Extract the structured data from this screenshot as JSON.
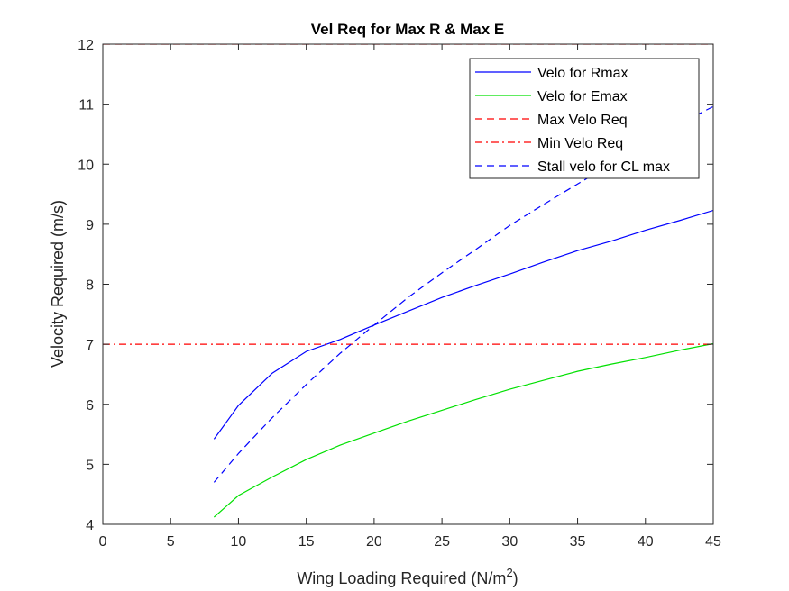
{
  "chart_data": {
    "type": "line",
    "title": "Vel Req for Max R & Max E",
    "xlabel": "Wing Loading Required (N/m",
    "xlabel_sup": "2",
    "xlabel_close": ")",
    "ylabel": "Velocity Required (m/s)",
    "xlim": [
      0,
      45
    ],
    "ylim": [
      4,
      12
    ],
    "xticks": [
      0,
      5,
      10,
      15,
      20,
      25,
      30,
      35,
      40,
      45
    ],
    "yticks": [
      4,
      5,
      6,
      7,
      8,
      9,
      10,
      11,
      12
    ],
    "grid": false,
    "legend_position": "top-right",
    "series": [
      {
        "name": "Velo for Rmax",
        "color": "#0000ff",
        "style": "solid",
        "x": [
          8.2,
          10,
          12.5,
          15,
          17.5,
          20,
          22.5,
          25,
          27.5,
          30,
          32.5,
          35,
          37.5,
          40,
          42.5,
          45
        ],
        "y": [
          5.42,
          5.98,
          6.52,
          6.88,
          7.08,
          7.32,
          7.55,
          7.78,
          7.98,
          8.17,
          8.37,
          8.56,
          8.72,
          8.9,
          9.06,
          9.23
        ]
      },
      {
        "name": "Velo for Emax",
        "color": "#00e000",
        "style": "solid",
        "x": [
          8.2,
          10,
          12.5,
          15,
          17.5,
          20,
          22.5,
          25,
          27.5,
          30,
          32.5,
          35,
          37.5,
          40,
          42.5,
          45
        ],
        "y": [
          4.12,
          4.48,
          4.79,
          5.08,
          5.32,
          5.52,
          5.72,
          5.9,
          6.08,
          6.25,
          6.4,
          6.55,
          6.67,
          6.78,
          6.9,
          7.01
        ]
      },
      {
        "name": "Max Velo Req",
        "color": "#ff0000",
        "style": "dashed",
        "x": [
          0,
          45
        ],
        "y": [
          12,
          12
        ]
      },
      {
        "name": "Min Velo Req",
        "color": "#ff0000",
        "style": "dashdot",
        "x": [
          0,
          45
        ],
        "y": [
          7,
          7
        ]
      },
      {
        "name": "Stall velo for CL max",
        "color": "#0000ff",
        "style": "dashed",
        "x": [
          8.2,
          10,
          12.5,
          15,
          17.5,
          20,
          22.5,
          25,
          27.5,
          30,
          32.5,
          35,
          37.5,
          40,
          42.5,
          45
        ],
        "y": [
          4.7,
          5.18,
          5.78,
          6.33,
          6.85,
          7.32,
          7.78,
          8.19,
          8.58,
          8.98,
          9.33,
          9.67,
          10.0,
          10.36,
          10.67,
          10.96
        ]
      }
    ]
  }
}
